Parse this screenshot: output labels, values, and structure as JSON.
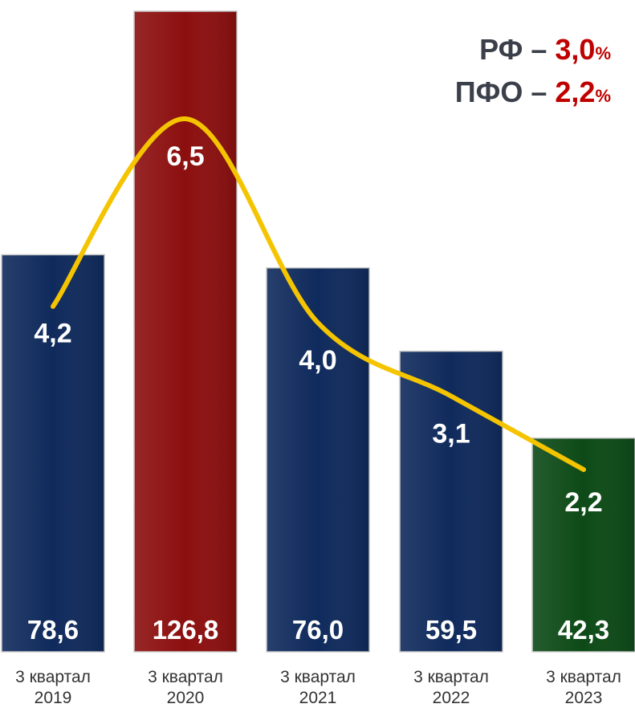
{
  "chart_data": {
    "type": "bar",
    "categories": [
      "3 квартал 2019",
      "3 квартал 2020",
      "3 квартал 2021",
      "3 квартал 2022",
      "3 квартал 2023"
    ],
    "category_lines": [
      [
        "3 квартал",
        "2019"
      ],
      [
        "3 квартал",
        "2020"
      ],
      [
        "3 квартал",
        "2021"
      ],
      [
        "3 квартал",
        "2022"
      ],
      [
        "3 квартал",
        "2023"
      ]
    ],
    "values": [
      78.6,
      126.8,
      76.0,
      59.5,
      42.3
    ],
    "value_labels": [
      "78,6",
      "126,8",
      "76,0",
      "59,5",
      "42,3"
    ],
    "bar_colors": [
      "#0f2a5c",
      "#8c0f0f",
      "#0f2a5c",
      "#0f2a5c",
      "#0d4a17"
    ],
    "ylim": [
      0,
      126.8
    ],
    "line_series": {
      "values": [
        4.2,
        6.5,
        4.0,
        3.1,
        2.2
      ],
      "labels": [
        "4,2",
        "6,5",
        "4,0",
        "3,1",
        "2,2"
      ],
      "color": "#f5c400"
    },
    "grid": false,
    "legend": "none"
  },
  "summary": {
    "rf_label": "РФ – ",
    "rf_value": "3,0",
    "pfo_label": "ПФО – ",
    "pfo_value": "2,2",
    "percent": "%"
  }
}
